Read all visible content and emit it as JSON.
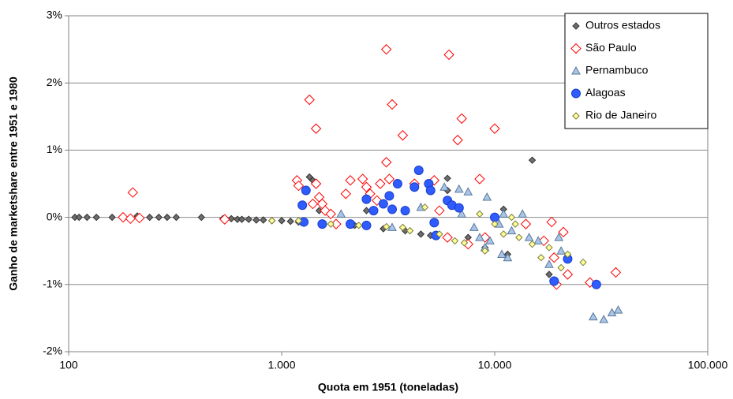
{
  "chart_data": {
    "type": "scatter",
    "xlabel": "Quota em 1951 (toneladas)",
    "ylabel": "Ganho de marketshare entre 1951 e 1980",
    "xscale": "log",
    "xlim": [
      100,
      100000
    ],
    "xticks": [
      100,
      {
        "value": 1000,
        "label": "1.000"
      },
      {
        "value": 10000,
        "label": "10.000"
      },
      {
        "value": 100000,
        "label": "100.000"
      }
    ],
    "ylim": [
      -2,
      3
    ],
    "yticks": [
      {
        "value": -2,
        "label": "-2%"
      },
      {
        "value": -1,
        "label": "-1%"
      },
      {
        "value": 0,
        "label": "0%"
      },
      {
        "value": 1,
        "label": "1%"
      },
      {
        "value": 2,
        "label": "2%"
      },
      {
        "value": 3,
        "label": "3%"
      }
    ],
    "grid": true,
    "legend": "upper right",
    "series": [
      {
        "name": "Outros estados",
        "marker": "diamond",
        "color": "#6e6e6e",
        "edgecolor": "#333333",
        "x": [
          107,
          112,
          122,
          135,
          160,
          210,
          240,
          265,
          290,
          320,
          420,
          530,
          580,
          620,
          650,
          700,
          760,
          820,
          900,
          1000,
          1100,
          1200,
          1350,
          1400,
          1500,
          1800,
          2200,
          2500,
          3000,
          3800,
          4500,
          5000,
          6000,
          6000,
          7500,
          9000,
          11000,
          11500,
          15000,
          18000
        ],
        "y": [
          0,
          0,
          0,
          0,
          0,
          0.02,
          0,
          0,
          0,
          0,
          0,
          -0.02,
          -0.02,
          -0.03,
          -0.03,
          -0.03,
          -0.04,
          -0.04,
          -0.05,
          -0.05,
          -0.06,
          -0.07,
          0.6,
          0.55,
          0.1,
          -0.1,
          -0.12,
          0.1,
          -0.17,
          -0.2,
          -0.25,
          -0.27,
          0.58,
          0.4,
          -0.3,
          -0.45,
          0.12,
          -0.55,
          0.85,
          -0.85
        ]
      },
      {
        "name": "São Paulo",
        "marker": "diamond-open",
        "color": "#ffffff",
        "edgecolor": "#ff0000",
        "x": [
          200,
          180,
          195,
          215,
          540,
          1180,
          1200,
          1350,
          1450,
          1450,
          1500,
          1550,
          1400,
          1600,
          1700,
          1800,
          2000,
          2100,
          2400,
          2500,
          2600,
          2800,
          2900,
          3100,
          3100,
          3300,
          3200,
          3700,
          4200,
          5200,
          5500,
          6100,
          6700,
          7000,
          8500,
          10000,
          6000,
          7500,
          9000,
          14000,
          17000,
          18500,
          19000,
          19500,
          21000,
          22000,
          28000,
          37000
        ],
        "y": [
          0.37,
          0,
          -0.02,
          -0.01,
          -0.03,
          0.55,
          0.47,
          1.75,
          1.32,
          0.5,
          0.3,
          0.2,
          0.2,
          0.1,
          0.05,
          -0.1,
          0.35,
          0.55,
          0.57,
          0.45,
          0.35,
          0.25,
          0.5,
          2.5,
          0.82,
          1.68,
          0.57,
          1.22,
          0.5,
          0.55,
          0.1,
          2.42,
          1.15,
          1.47,
          0.57,
          1.32,
          -0.3,
          -0.4,
          -0.3,
          -0.1,
          -0.35,
          -0.07,
          -0.6,
          -1.0,
          -0.22,
          -0.85,
          -0.97,
          -0.82
        ]
      },
      {
        "name": "Pernambuco",
        "marker": "triangle",
        "color": "#a9c6e8",
        "edgecolor": "#5a7899",
        "x": [
          1900,
          3300,
          4500,
          5800,
          6800,
          7500,
          9200,
          7000,
          8000,
          8500,
          9500,
          10500,
          11000,
          11500,
          12000,
          13500,
          14500,
          16000,
          18000,
          20000,
          20500,
          29000,
          32500,
          35500,
          38000,
          9000,
          10800
        ],
        "y": [
          0.05,
          -0.15,
          0.15,
          0.45,
          0.42,
          0.38,
          0.3,
          0.05,
          -0.15,
          -0.3,
          -0.35,
          -0.1,
          0.05,
          -0.6,
          -0.2,
          0.05,
          -0.3,
          -0.35,
          -0.7,
          -0.3,
          -0.5,
          -1.48,
          -1.52,
          -1.42,
          -1.38,
          -0.45,
          -0.55
        ]
      },
      {
        "name": "Alagoas",
        "marker": "circle",
        "color": "#2f5cff",
        "edgecolor": "#1a3ec8",
        "x": [
          1250,
          1300,
          1270,
          1550,
          2100,
          2500,
          2500,
          2700,
          3000,
          3200,
          3300,
          3500,
          3800,
          4200,
          4400,
          4900,
          5000,
          5200,
          5300,
          6000,
          6300,
          6800,
          10000,
          19000,
          22000,
          30000
        ],
        "y": [
          0.18,
          0.4,
          -0.07,
          -0.1,
          -0.1,
          -0.12,
          0.27,
          0.1,
          0.2,
          0.32,
          0.12,
          0.5,
          0.1,
          0.45,
          0.7,
          0.5,
          0.4,
          -0.08,
          -0.27,
          0.25,
          0.18,
          0.14,
          0,
          -0.95,
          -0.62,
          -1.0
        ]
      },
      {
        "name": "Rio de Janeiro",
        "marker": "diamond",
        "color": "#ffff99",
        "edgecolor": "#7a7a40",
        "x": [
          900,
          1200,
          1700,
          2300,
          3100,
          4000,
          4700,
          5500,
          6500,
          8500,
          9000,
          10000,
          11000,
          12000,
          12500,
          13000,
          15000,
          16500,
          18000,
          20500,
          22000,
          26000,
          3700,
          7200
        ],
        "y": [
          -0.05,
          -0.05,
          -0.1,
          -0.12,
          -0.14,
          -0.2,
          0.15,
          -0.25,
          -0.35,
          0.05,
          -0.5,
          -0.1,
          -0.25,
          0,
          -0.1,
          -0.3,
          -0.4,
          -0.6,
          -0.45,
          -0.75,
          -0.55,
          -0.67,
          -0.15,
          -0.38
        ]
      }
    ]
  }
}
